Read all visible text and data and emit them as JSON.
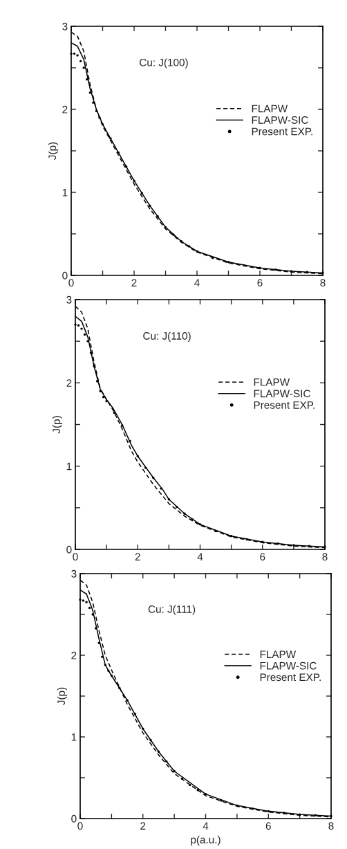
{
  "chart_data": [
    {
      "type": "line",
      "title": "Cu: J(100)",
      "ylabel": "J(p)",
      "xlim": [
        0,
        8
      ],
      "ylim": [
        0,
        3
      ],
      "xticks": [
        0,
        {
          "value": 1,
          "label": null
        },
        2,
        {
          "value": 3,
          "label": null
        },
        4,
        {
          "value": 5,
          "label": null
        },
        6,
        {
          "value": 7,
          "label": null
        },
        8
      ],
      "yticks": [
        0,
        {
          "value": 0.5,
          "label": null
        },
        1,
        {
          "value": 1.5,
          "label": null
        },
        2,
        {
          "value": 2.5,
          "label": null
        },
        3
      ],
      "legend": "right",
      "grid": false,
      "series": [
        {
          "name": "FLAPW",
          "color": "#000000",
          "line_style": "dashed",
          "x": [
            0,
            0.2,
            0.4,
            0.6,
            0.8,
            1.0,
            1.5,
            2,
            2.5,
            3,
            3.5,
            4,
            5,
            6,
            7,
            8
          ],
          "values": [
            2.93,
            2.88,
            2.7,
            2.3,
            2.0,
            1.8,
            1.45,
            1.1,
            0.8,
            0.56,
            0.4,
            0.28,
            0.15,
            0.08,
            0.04,
            0.02
          ]
        },
        {
          "name": "FLAPW-SIC",
          "color": "#000000",
          "line_style": "solid",
          "x": [
            0,
            0.2,
            0.4,
            0.6,
            0.8,
            1.0,
            1.5,
            2,
            2.5,
            3,
            3.5,
            4,
            5,
            6,
            7,
            8
          ],
          "values": [
            2.8,
            2.76,
            2.6,
            2.25,
            2.0,
            1.82,
            1.48,
            1.14,
            0.84,
            0.58,
            0.41,
            0.29,
            0.16,
            0.09,
            0.05,
            0.03
          ]
        },
        {
          "name": "Present EXP.",
          "type": "scatter",
          "marker": "circle",
          "color": "#000000",
          "x": [
            0,
            0.1,
            0.2,
            0.3,
            0.4,
            0.5,
            0.6,
            0.7,
            0.8,
            0.9,
            1.0,
            1.25,
            1.5,
            1.75,
            2,
            2.25,
            2.5,
            2.75,
            3,
            3.25,
            3.5,
            3.75,
            4,
            4.5,
            5,
            5.5,
            6,
            6.5,
            7,
            7.5,
            8
          ],
          "values": [
            2.67,
            2.67,
            2.65,
            2.58,
            2.5,
            2.36,
            2.2,
            2.08,
            1.98,
            1.9,
            1.82,
            1.65,
            1.48,
            1.31,
            1.14,
            0.99,
            0.84,
            0.71,
            0.58,
            0.49,
            0.41,
            0.35,
            0.29,
            0.21,
            0.16,
            0.12,
            0.09,
            0.07,
            0.05,
            0.04,
            0.03
          ]
        }
      ]
    },
    {
      "type": "line",
      "title": "Cu: J(110)",
      "ylabel": "J(p)",
      "xlim": [
        0,
        8
      ],
      "ylim": [
        0,
        3
      ],
      "xticks": [
        0,
        {
          "value": 1,
          "label": null
        },
        2,
        {
          "value": 3,
          "label": null
        },
        4,
        {
          "value": 5,
          "label": null
        },
        6,
        {
          "value": 7,
          "label": null
        },
        8
      ],
      "yticks": [
        0,
        {
          "value": 0.5,
          "label": null
        },
        1,
        {
          "value": 1.5,
          "label": null
        },
        2,
        {
          "value": 2.5,
          "label": null
        },
        3
      ],
      "legend": "right",
      "grid": false,
      "series": [
        {
          "name": "FLAPW",
          "color": "#000000",
          "line_style": "dashed",
          "x": [
            0,
            0.2,
            0.4,
            0.6,
            0.8,
            1.0,
            1.2,
            1.5,
            1.8,
            2,
            2.5,
            3,
            3.5,
            4,
            5,
            6,
            7,
            8
          ],
          "values": [
            2.92,
            2.85,
            2.65,
            2.25,
            1.93,
            1.8,
            1.68,
            1.45,
            1.18,
            1.05,
            0.78,
            0.55,
            0.4,
            0.29,
            0.15,
            0.08,
            0.04,
            0.02
          ]
        },
        {
          "name": "FLAPW-SIC",
          "color": "#000000",
          "line_style": "solid",
          "x": [
            0,
            0.2,
            0.4,
            0.6,
            0.8,
            1.0,
            1.2,
            1.5,
            1.8,
            2,
            2.5,
            2.8,
            3,
            3.5,
            4,
            5,
            6,
            7,
            8
          ],
          "values": [
            2.8,
            2.74,
            2.55,
            2.2,
            1.92,
            1.8,
            1.7,
            1.5,
            1.25,
            1.12,
            0.86,
            0.72,
            0.6,
            0.43,
            0.3,
            0.16,
            0.09,
            0.05,
            0.03
          ]
        },
        {
          "name": "Present EXP.",
          "type": "scatter",
          "marker": "circle",
          "color": "#000000",
          "x": [
            0,
            0.1,
            0.2,
            0.3,
            0.4,
            0.5,
            0.6,
            0.7,
            0.8,
            0.9,
            1.0,
            1.25,
            1.5,
            1.75,
            2,
            2.25,
            2.5,
            2.75,
            3,
            3.25,
            3.5,
            3.75,
            4,
            4.5,
            5,
            5.5,
            6,
            6.5,
            7,
            7.5,
            8
          ],
          "values": [
            2.7,
            2.69,
            2.65,
            2.58,
            2.5,
            2.36,
            2.2,
            2.02,
            1.9,
            1.83,
            1.78,
            1.64,
            1.49,
            1.3,
            1.12,
            0.98,
            0.86,
            0.73,
            0.6,
            0.51,
            0.43,
            0.36,
            0.3,
            0.22,
            0.16,
            0.12,
            0.09,
            0.07,
            0.05,
            0.04,
            0.03
          ]
        }
      ]
    },
    {
      "type": "line",
      "title": "Cu: J(111)",
      "ylabel": "J(p)",
      "xlabel": "p(a.u.)",
      "xlim": [
        0,
        8
      ],
      "ylim": [
        0,
        3
      ],
      "xticks": [
        0,
        {
          "value": 1,
          "label": null
        },
        2,
        {
          "value": 3,
          "label": null
        },
        4,
        {
          "value": 5,
          "label": null
        },
        6,
        {
          "value": 7,
          "label": null
        },
        8
      ],
      "yticks": [
        0,
        {
          "value": 0.5,
          "label": null
        },
        1,
        {
          "value": 1.5,
          "label": null
        },
        2,
        {
          "value": 2.5,
          "label": null
        },
        3
      ],
      "legend": "right",
      "grid": false,
      "series": [
        {
          "name": "FLAPW",
          "color": "#000000",
          "line_style": "dashed",
          "x": [
            0,
            0.2,
            0.4,
            0.6,
            0.8,
            1.0,
            1.5,
            2,
            2.5,
            3,
            4,
            5,
            6,
            7,
            8
          ],
          "values": [
            2.92,
            2.86,
            2.65,
            2.3,
            2.0,
            1.82,
            1.4,
            1.05,
            0.78,
            0.55,
            0.28,
            0.15,
            0.08,
            0.04,
            0.02
          ]
        },
        {
          "name": "FLAPW-SIC",
          "color": "#000000",
          "line_style": "solid",
          "x": [
            0,
            0.2,
            0.4,
            0.6,
            0.8,
            1.0,
            1.5,
            2,
            2.5,
            3,
            4,
            5,
            6,
            7,
            8
          ],
          "values": [
            2.8,
            2.75,
            2.55,
            2.2,
            1.88,
            1.75,
            1.45,
            1.1,
            0.82,
            0.58,
            0.3,
            0.16,
            0.09,
            0.05,
            0.03
          ]
        },
        {
          "name": "Present EXP.",
          "type": "scatter",
          "marker": "circle",
          "color": "#000000",
          "x": [
            0,
            0.1,
            0.2,
            0.3,
            0.4,
            0.5,
            0.6,
            0.7,
            0.8,
            0.9,
            1.0,
            1.25,
            1.5,
            1.75,
            2,
            2.25,
            2.5,
            2.75,
            3,
            3.25,
            3.5,
            3.75,
            4,
            4.5,
            5,
            5.5,
            6,
            6.5,
            7,
            7.5,
            8
          ],
          "values": [
            2.68,
            2.67,
            2.65,
            2.58,
            2.5,
            2.33,
            2.15,
            1.98,
            1.88,
            1.81,
            1.75,
            1.6,
            1.45,
            1.28,
            1.1,
            0.96,
            0.82,
            0.7,
            0.58,
            0.49,
            0.41,
            0.35,
            0.3,
            0.22,
            0.16,
            0.12,
            0.09,
            0.07,
            0.05,
            0.04,
            0.03
          ]
        }
      ]
    }
  ]
}
